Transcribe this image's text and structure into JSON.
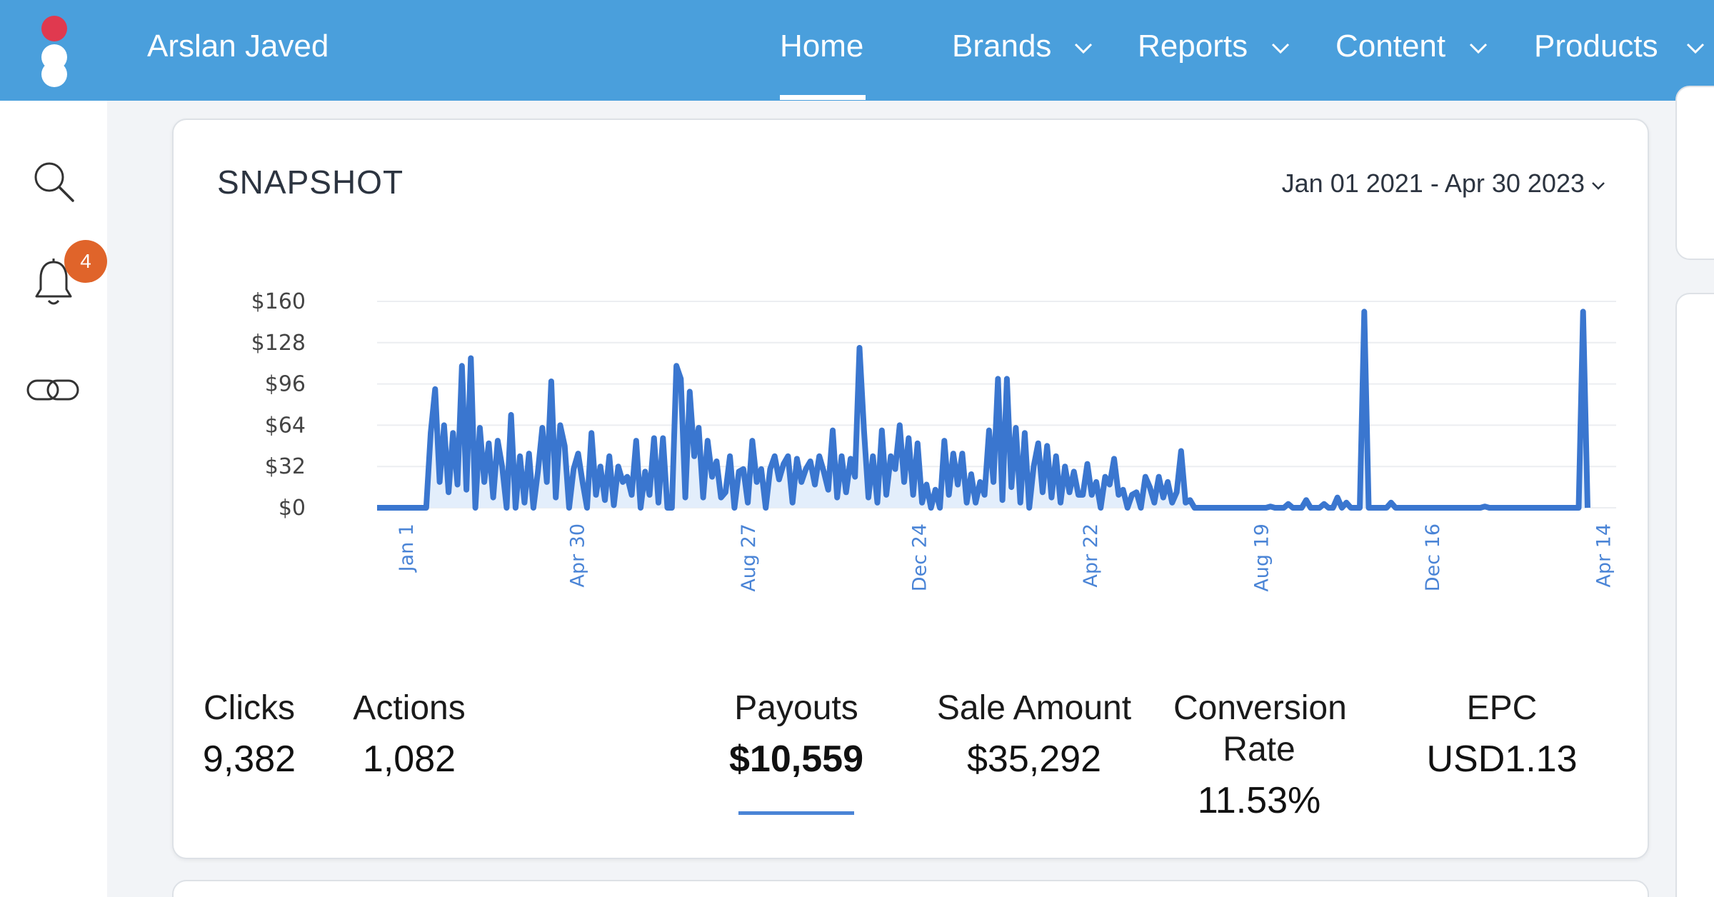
{
  "header": {
    "user_name": "Arslan Javed",
    "nav": [
      {
        "label": "Home",
        "active": true,
        "has_dropdown": false
      },
      {
        "label": "Brands",
        "active": false,
        "has_dropdown": true
      },
      {
        "label": "Reports",
        "active": false,
        "has_dropdown": true
      },
      {
        "label": "Content",
        "active": false,
        "has_dropdown": true
      },
      {
        "label": "Products",
        "active": false,
        "has_dropdown": true
      }
    ]
  },
  "sidebar": {
    "icons": [
      "search-icon",
      "bell-icon",
      "link-icon"
    ],
    "notification_count": "4"
  },
  "snapshot": {
    "title": "SNAPSHOT",
    "date_range": "Jan 01 2021 - Apr 30 2023",
    "metrics": [
      {
        "label": "Clicks",
        "value": "9,382"
      },
      {
        "label": "Actions",
        "value": "1,082"
      },
      {
        "label": "Payouts",
        "value": "$10,559",
        "selected": true
      },
      {
        "label": "Sale Amount",
        "value": "$35,292"
      },
      {
        "label": "Conversion Rate",
        "value": "11.53%"
      },
      {
        "label": "EPC",
        "value": "USD1.13"
      }
    ]
  },
  "colors": {
    "header_bg": "#4a9fdc",
    "line": "#3a76cf",
    "area": "#e3eefb",
    "badge": "#e0642a",
    "logo_red": "#e0394f"
  },
  "chart_data": {
    "type": "line",
    "ylabel": "",
    "xlabel": "",
    "ylim": [
      0,
      160
    ],
    "yticks": [
      "$0",
      "$32",
      "$64",
      "$96",
      "$128",
      "$160"
    ],
    "xticks": [
      "Jan 1",
      "Apr 30",
      "Aug 27",
      "Dec 24",
      "Apr 22",
      "Aug 19",
      "Dec 16",
      "Apr 14"
    ],
    "series": [
      {
        "values": [
          0,
          0,
          0,
          0,
          0,
          0,
          0,
          0,
          0,
          0,
          0,
          0,
          58,
          92,
          20,
          64,
          12,
          58,
          18,
          110,
          14,
          116,
          0,
          62,
          20,
          50,
          8,
          52,
          32,
          0,
          72,
          0,
          40,
          4,
          42,
          0,
          28,
          62,
          20,
          98,
          8,
          64,
          48,
          0,
          30,
          42,
          20,
          0,
          58,
          10,
          32,
          6,
          40,
          2,
          32,
          20,
          24,
          10,
          52,
          0,
          28,
          10,
          54,
          4,
          54,
          0,
          0,
          110,
          100,
          8,
          90,
          40,
          62,
          8,
          52,
          24,
          36,
          8,
          12,
          40,
          0,
          28,
          30,
          4,
          52,
          20,
          30,
          0,
          30,
          40,
          22,
          34,
          40,
          4,
          38,
          20,
          30,
          36,
          18,
          40,
          28,
          14,
          60,
          8,
          40,
          12,
          38,
          24,
          124,
          60,
          8,
          40,
          4,
          60,
          10,
          40,
          30,
          64,
          20,
          54,
          10,
          50,
          4,
          18,
          0,
          14,
          0,
          52,
          10,
          42,
          18,
          42,
          4,
          26,
          4,
          20,
          10,
          60,
          20,
          100,
          6,
          100,
          16,
          62,
          4,
          58,
          0,
          32,
          50,
          12,
          48,
          8,
          40,
          4,
          32,
          12,
          28,
          10,
          10,
          34,
          10,
          20,
          0,
          24,
          18,
          38,
          10,
          14,
          0,
          10,
          12,
          0,
          24,
          16,
          4,
          24,
          8,
          20,
          4,
          12,
          44,
          4,
          6,
          0,
          0,
          0,
          0,
          0,
          0,
          0,
          0,
          0,
          0,
          0,
          0,
          0,
          0,
          0,
          0,
          0,
          1,
          0,
          0,
          0,
          3,
          0,
          0,
          0,
          6,
          0,
          0,
          0,
          3,
          0,
          0,
          8,
          0,
          4,
          0,
          0,
          0,
          152,
          0,
          0,
          0,
          0,
          0,
          4,
          0,
          0,
          0,
          0,
          0,
          0,
          0,
          0,
          0,
          0,
          0,
          0,
          0,
          0,
          0,
          0,
          0,
          0,
          0,
          0,
          1,
          0,
          0,
          0,
          0,
          0,
          0,
          0,
          0,
          0,
          0,
          0,
          0,
          0,
          0,
          0,
          0,
          0,
          0,
          0,
          0,
          0,
          152,
          0
        ]
      }
    ]
  }
}
